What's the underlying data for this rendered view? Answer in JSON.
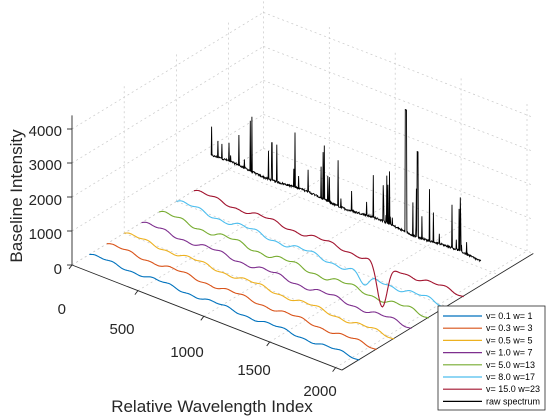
{
  "chart_data": {
    "type": "line",
    "title": "",
    "xlabel": "Relative Wavelength Index",
    "ylabel": "Baseline Intensity",
    "x_ticks": [
      "500",
      "1000",
      "1500",
      "2000"
    ],
    "y_ticks": [
      "0",
      "1000",
      "2000",
      "3000",
      "4000"
    ],
    "depth_tick": "0",
    "xlim": [
      0,
      2048
    ],
    "ylim": [
      0,
      4400
    ],
    "grid": true,
    "legend_placement": "bottom-right",
    "series": [
      {
        "name": "v=  0.1 w= 1",
        "color": "#0072BD",
        "kind": "baseline",
        "level": 0,
        "amp": 45,
        "dip": 0
      },
      {
        "name": "v=  0.3 w= 3",
        "color": "#D95319",
        "kind": "baseline",
        "level": 0,
        "amp": 50,
        "dip": 0
      },
      {
        "name": "v=  0.5 w= 5",
        "color": "#EDB120",
        "kind": "baseline",
        "level": 0,
        "amp": 55,
        "dip": 0
      },
      {
        "name": "v=  1.0 w= 7",
        "color": "#7E2F8E",
        "kind": "baseline",
        "level": 0,
        "amp": 60,
        "dip": 0
      },
      {
        "name": "v=  5.0 w=13",
        "color": "#77AC30",
        "kind": "baseline",
        "level": 0,
        "amp": 70,
        "dip": 0
      },
      {
        "name": "v=  8.0 w=17",
        "color": "#4DBEEE",
        "kind": "baseline",
        "level": 0,
        "amp": 70,
        "dip": 350
      },
      {
        "name": "v= 15.0 w=23",
        "color": "#A2142F",
        "kind": "baseline",
        "level": 0,
        "amp": 60,
        "dip": 1300
      },
      {
        "name": "raw spectrum",
        "color": "#000000",
        "kind": "spectrum",
        "level": 700
      }
    ]
  }
}
